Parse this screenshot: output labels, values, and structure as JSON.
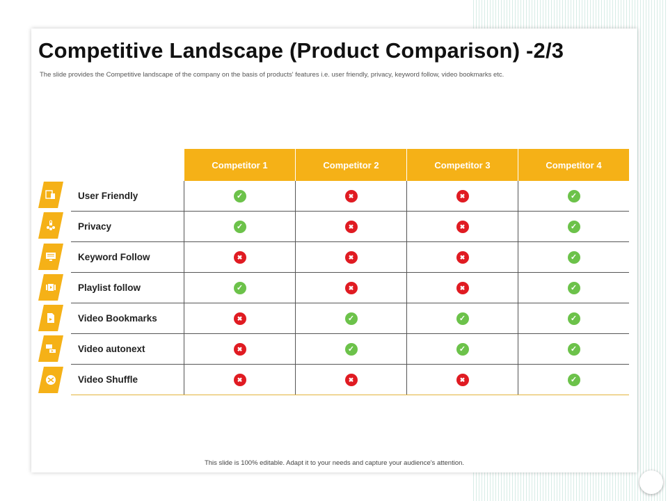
{
  "slide": {
    "title": "Competitive Landscape (Product Comparison) -2/3",
    "subtitle": "The slide provides the Competitive landscape of the company on the basis of products' features i.e. user friendly, privacy, keyword follow, video bookmarks etc.",
    "footer": "This slide is 100% editable.  Adapt it to your needs and capture your audience's attention."
  },
  "colors": {
    "accent": "#f5b117",
    "yes": "#6cc24a",
    "no": "#e01b22"
  },
  "table": {
    "competitors": [
      "Competitor 1",
      "Competitor 2",
      "Competitor 3",
      "Competitor 4"
    ],
    "rows": [
      {
        "feature": "User Friendly",
        "icon": "user-friendly-icon",
        "marks": [
          "yes",
          "no",
          "no",
          "yes"
        ]
      },
      {
        "feature": "Privacy",
        "icon": "privacy-icon",
        "marks": [
          "yes",
          "no",
          "no",
          "yes"
        ]
      },
      {
        "feature": "Keyword Follow",
        "icon": "keyword-follow-icon",
        "marks": [
          "no",
          "no",
          "no",
          "yes"
        ]
      },
      {
        "feature": "Playlist follow",
        "icon": "playlist-follow-icon",
        "marks": [
          "yes",
          "no",
          "no",
          "yes"
        ]
      },
      {
        "feature": "Video Bookmarks",
        "icon": "video-bookmarks-icon",
        "marks": [
          "no",
          "yes",
          "yes",
          "yes"
        ]
      },
      {
        "feature": "Video autonext",
        "icon": "video-autonext-icon",
        "marks": [
          "no",
          "yes",
          "yes",
          "yes"
        ]
      },
      {
        "feature": "Video Shuffle",
        "icon": "video-shuffle-icon",
        "marks": [
          "no",
          "no",
          "no",
          "yes"
        ]
      }
    ]
  }
}
